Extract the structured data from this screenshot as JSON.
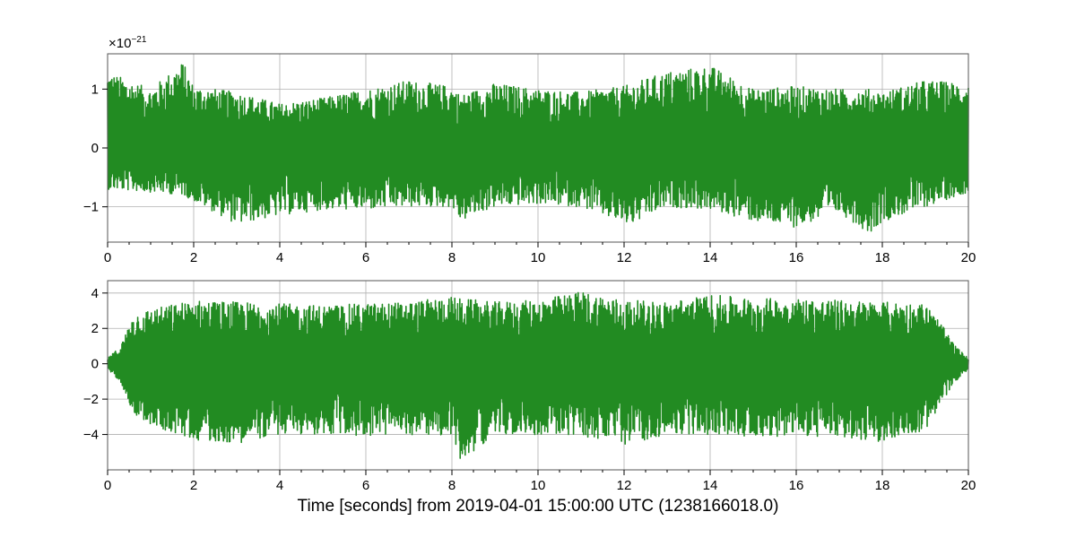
{
  "chart_data": [
    {
      "type": "line",
      "panel": "top",
      "title": "",
      "xlabel": "",
      "ylabel": "",
      "y_scale_label": "×10",
      "y_scale_exponent": "−21",
      "xlim": [
        0,
        20
      ],
      "ylim": [
        -1.6,
        1.6
      ],
      "x_ticks": [
        "0",
        "2",
        "4",
        "6",
        "8",
        "10",
        "12",
        "14",
        "16",
        "18",
        "20"
      ],
      "y_ticks": [
        {
          "value": 1,
          "label": "1"
        },
        {
          "value": 0,
          "label": "0"
        },
        {
          "value": -1,
          "label": "−1"
        }
      ],
      "grid": true,
      "color": "#228b22",
      "series": [
        {
          "x": [
            0,
            1,
            1.75,
            2,
            3,
            4,
            5,
            6,
            7,
            8,
            8.2,
            9,
            10,
            11,
            12,
            12.2,
            13,
            14,
            15,
            16,
            17,
            17.7,
            18,
            19,
            20
          ],
          "upper": [
            1.3,
            1.0,
            1.47,
            1.05,
            0.95,
            0.75,
            0.85,
            1.0,
            1.15,
            1.05,
            0.9,
            1.1,
            1.0,
            0.95,
            1.05,
            1.1,
            1.3,
            1.4,
            1.0,
            1.05,
            1.0,
            1.0,
            0.95,
            1.15,
            1.1
          ],
          "lower": [
            -0.7,
            -0.75,
            -0.8,
            -0.9,
            -1.3,
            -1.15,
            -1.05,
            -1.05,
            -1.0,
            -1.0,
            -1.25,
            -1.0,
            -0.95,
            -1.0,
            -1.3,
            -1.3,
            -1.0,
            -1.05,
            -1.25,
            -1.35,
            -1.1,
            -1.45,
            -1.25,
            -1.0,
            -0.75
          ]
        }
      ]
    },
    {
      "type": "line",
      "panel": "bottom",
      "title": "",
      "xlabel": "Time [seconds] from 2019-04-01 15:00:00 UTC (1238166018.0)",
      "ylabel": "",
      "xlim": [
        0,
        20
      ],
      "ylim": [
        -6,
        4.7
      ],
      "x_ticks": [
        "0",
        "2",
        "4",
        "6",
        "8",
        "10",
        "12",
        "14",
        "16",
        "18",
        "20"
      ],
      "y_ticks": [
        {
          "value": 4,
          "label": "4"
        },
        {
          "value": 2,
          "label": "2"
        },
        {
          "value": 0,
          "label": "0"
        },
        {
          "value": -2,
          "label": "−2"
        },
        {
          "value": -4,
          "label": "−4"
        }
      ],
      "grid": true,
      "color": "#228b22",
      "series": [
        {
          "x": [
            0,
            0.3,
            0.6,
            1,
            2,
            3,
            4,
            5,
            6,
            7,
            8,
            8.2,
            9,
            10,
            11,
            12,
            13,
            14,
            15,
            16,
            17,
            18,
            19,
            19.3,
            19.7,
            20
          ],
          "upper": [
            0.3,
            1.0,
            2.8,
            3.1,
            3.6,
            3.5,
            3.4,
            3.3,
            3.4,
            3.5,
            3.8,
            3.7,
            3.5,
            3.6,
            4.1,
            3.6,
            3.5,
            3.9,
            3.7,
            3.7,
            3.6,
            3.5,
            3.4,
            2.5,
            1.0,
            0.3
          ],
          "lower": [
            -0.3,
            -1.0,
            -2.8,
            -3.5,
            -4.3,
            -4.5,
            -4.0,
            -4.0,
            -4.1,
            -4.0,
            -4.1,
            -5.5,
            -4.0,
            -4.0,
            -4.1,
            -4.6,
            -4.0,
            -4.0,
            -4.1,
            -4.1,
            -4.2,
            -4.4,
            -3.8,
            -2.6,
            -1.0,
            -0.3
          ]
        }
      ]
    }
  ]
}
